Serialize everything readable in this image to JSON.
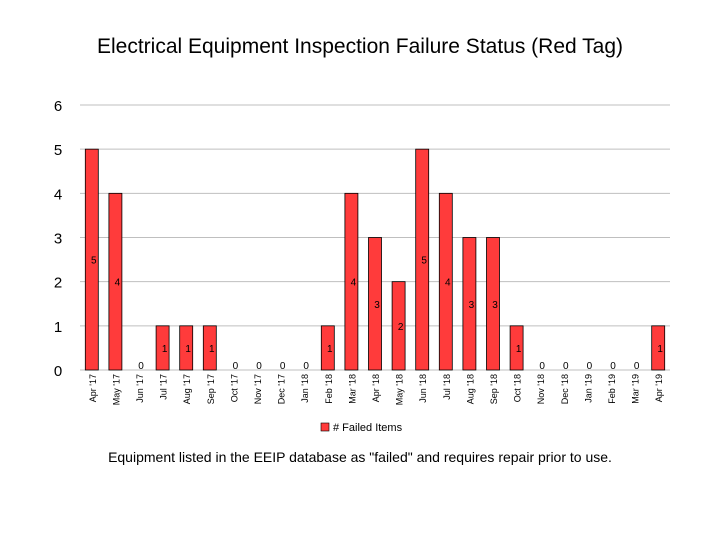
{
  "title": "Electrical Equipment Inspection Failure Status (Red Tag)",
  "footnote": "Equipment listed in the EEIP database as \"failed\" and requires repair prior to use.",
  "chart_data": {
    "type": "bar",
    "categories": [
      "Apr '17",
      "May '17",
      "Jun '17",
      "Jul '17",
      "Aug '17",
      "Sep '17",
      "Oct '17",
      "Nov '17",
      "Dec '17",
      "Jan '18",
      "Feb '18",
      "Mar '18",
      "Apr '18",
      "May '18",
      "Jun '18",
      "Jul '18",
      "Aug '18",
      "Sep '18",
      "Oct '18",
      "Nov '18",
      "Dec '18",
      "Jan '19",
      "Feb '19",
      "Mar '19",
      "Apr '19"
    ],
    "series": [
      {
        "name": "# Failed Items",
        "values": [
          5,
          4,
          0,
          1,
          1,
          1,
          0,
          0,
          0,
          0,
          1,
          4,
          3,
          2,
          5,
          4,
          3,
          3,
          1,
          0,
          0,
          0,
          0,
          0,
          1
        ],
        "color": "#ff3b3b"
      }
    ],
    "ylim": [
      0,
      6
    ],
    "yticks": [
      "0",
      "1",
      "2",
      "3",
      "4",
      "5",
      "6"
    ],
    "grid": true,
    "legend_position": "bottom",
    "data_labels": true
  }
}
